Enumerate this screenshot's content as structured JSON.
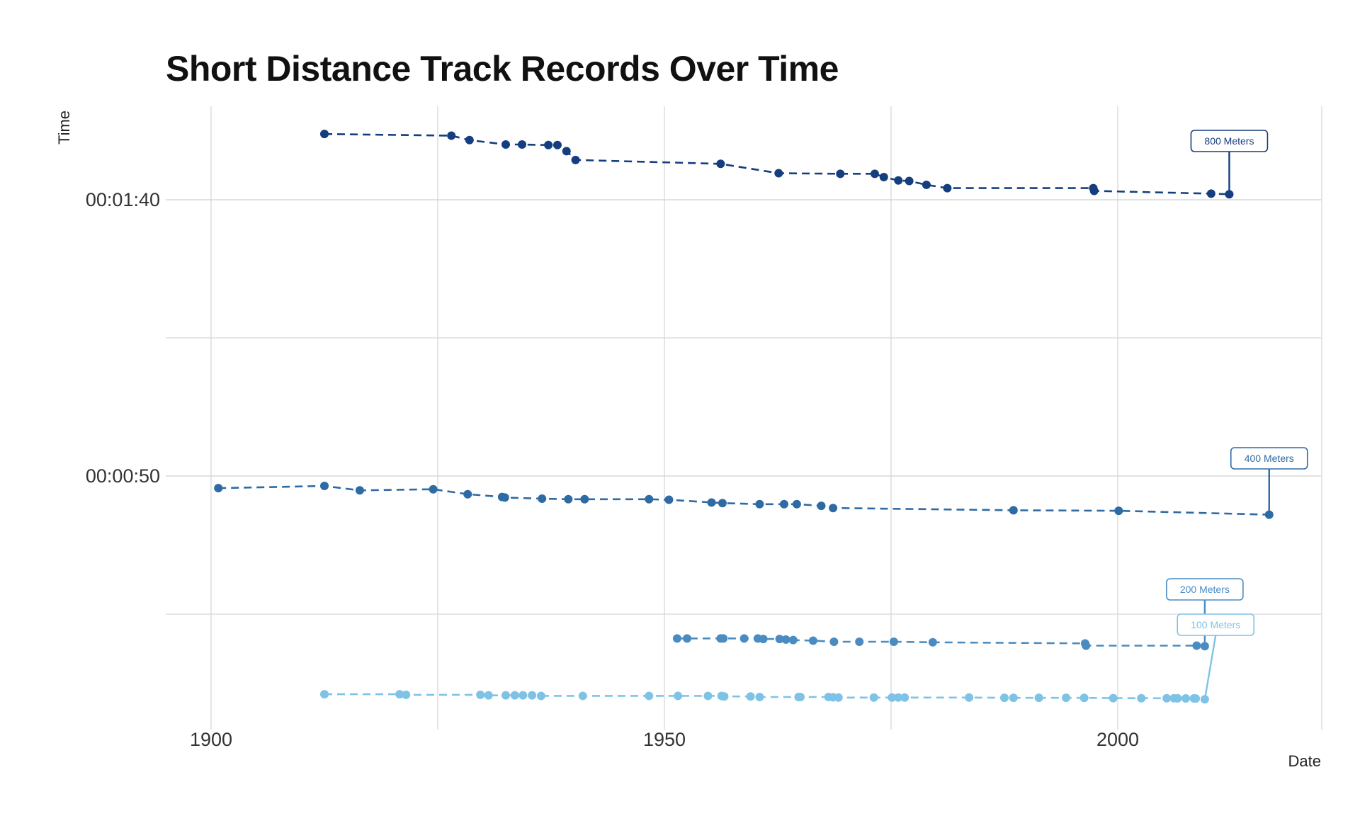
{
  "chart_data": {
    "type": "line",
    "title": "Short Distance Track Records Over Time",
    "xlabel": "Date",
    "ylabel": "Time",
    "xlim": [
      1900,
      2022.5
    ],
    "ylim_seconds": [
      7.6,
      117.8
    ],
    "x_ticks": [
      1900,
      1950,
      2000
    ],
    "y_ticks": [
      {
        "value": 100,
        "label": "00:01:40"
      },
      {
        "value": 50,
        "label": "00:00:50"
      }
    ],
    "y_grid_seconds": [
      25,
      75
    ],
    "grid": true,
    "line_style": "dashed",
    "series": [
      {
        "name": "800 Meters",
        "color": "#153e7e",
        "x": [
          1912.5,
          1926.5,
          1928.5,
          1932.5,
          1934.3,
          1937.2,
          1938.2,
          1939.2,
          1940.2,
          1956.2,
          1962.6,
          1969.4,
          1973.2,
          1974.2,
          1975.8,
          1977.0,
          1978.9,
          1981.2,
          1997.3,
          1997.4,
          2010.3,
          2012.3
        ],
        "y": [
          111.9,
          111.6,
          110.8,
          110.0,
          110.0,
          109.9,
          109.9,
          108.8,
          107.2,
          106.5,
          104.8,
          104.7,
          104.7,
          104.1,
          103.5,
          103.4,
          102.7,
          102.1,
          102.1,
          101.6,
          101.1,
          101.0
        ]
      },
      {
        "name": "400 Meters",
        "color": "#2e6aa3",
        "x": [
          1900.8,
          1912.5,
          1916.4,
          1924.5,
          1928.3,
          1932.1,
          1932.4,
          1936.5,
          1939.4,
          1941.2,
          1948.3,
          1950.5,
          1955.2,
          1956.4,
          1960.5,
          1963.2,
          1964.6,
          1967.3,
          1968.6,
          1988.5,
          2000.1,
          2016.7
        ],
        "y": [
          47.8,
          48.2,
          47.4,
          47.6,
          46.7,
          46.2,
          46.1,
          45.9,
          45.8,
          45.8,
          45.8,
          45.7,
          45.2,
          45.1,
          44.9,
          44.9,
          44.9,
          44.6,
          44.2,
          43.8,
          43.7,
          43.0
        ]
      },
      {
        "name": "200 Meters",
        "color": "#4a8cc2",
        "x": [
          1951.4,
          1952.5,
          1956.2,
          1956.5,
          1958.8,
          1960.3,
          1960.9,
          1962.7,
          1963.4,
          1964.2,
          1966.4,
          1968.7,
          1971.5,
          1975.3,
          1979.6,
          1996.4,
          1996.5,
          2008.7,
          2009.6
        ],
        "y": [
          20.6,
          20.6,
          20.6,
          20.6,
          20.6,
          20.6,
          20.5,
          20.5,
          20.4,
          20.3,
          20.2,
          20.0,
          20.0,
          20.0,
          19.9,
          19.7,
          19.3,
          19.3,
          19.2
        ]
      },
      {
        "name": "100 Meters",
        "color": "#7ec3e6",
        "x": [
          1912.5,
          1920.8,
          1921.5,
          1929.7,
          1930.6,
          1932.5,
          1933.5,
          1934.4,
          1935.4,
          1936.4,
          1941.0,
          1948.3,
          1951.5,
          1954.8,
          1956.3,
          1956.6,
          1959.5,
          1960.5,
          1964.8,
          1965.0,
          1968.1,
          1968.6,
          1969.2,
          1973.1,
          1975.1,
          1975.8,
          1976.5,
          1983.6,
          1987.5,
          1988.5,
          1991.3,
          1994.3,
          1996.3,
          1999.5,
          2002.6,
          2005.4,
          2006.2,
          2006.6,
          2007.5,
          2008.4,
          2008.6,
          2009.6
        ],
        "y": [
          10.5,
          10.5,
          10.4,
          10.4,
          10.3,
          10.3,
          10.3,
          10.3,
          10.3,
          10.2,
          10.2,
          10.2,
          10.2,
          10.2,
          10.2,
          10.1,
          10.1,
          10.0,
          10.0,
          10.0,
          10.0,
          9.95,
          9.9,
          9.9,
          9.9,
          9.9,
          9.9,
          9.9,
          9.86,
          9.85,
          9.85,
          9.85,
          9.84,
          9.79,
          9.78,
          9.77,
          9.77,
          9.76,
          9.75,
          9.74,
          9.72,
          9.58
        ]
      }
    ]
  }
}
